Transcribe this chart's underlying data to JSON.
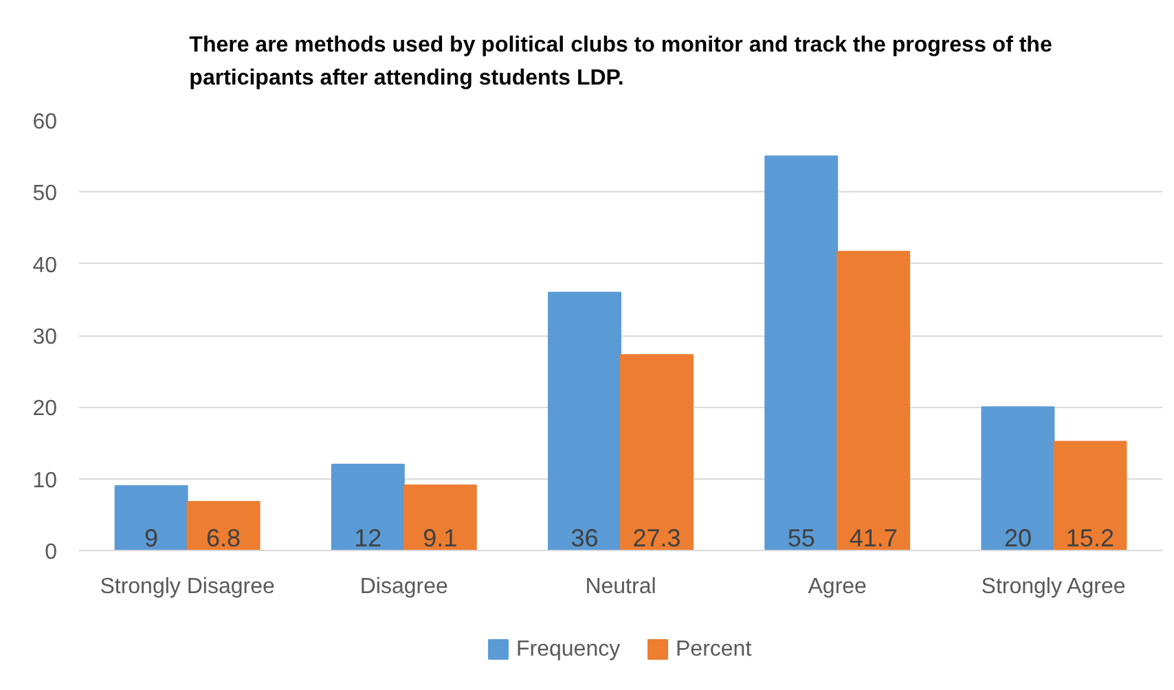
{
  "chart_data": {
    "type": "bar",
    "title": "There are methods used by political clubs to monitor and track the progress of the participants after attending students LDP.",
    "categories": [
      "Strongly Disagree",
      "Disagree",
      "Neutral",
      "Agree",
      "Strongly Agree"
    ],
    "series": [
      {
        "name": "Frequency",
        "color": "#5b9bd5",
        "values": [
          9,
          12,
          36,
          55,
          20
        ]
      },
      {
        "name": "Percent",
        "color": "#ed7d31",
        "values": [
          6.8,
          9.1,
          27.3,
          41.7,
          15.2
        ]
      }
    ],
    "ylim": [
      0,
      60
    ],
    "yticks": [
      0,
      10,
      20,
      30,
      40,
      50,
      60
    ],
    "grid": "y",
    "legend": "bottom",
    "data_labels": true
  }
}
